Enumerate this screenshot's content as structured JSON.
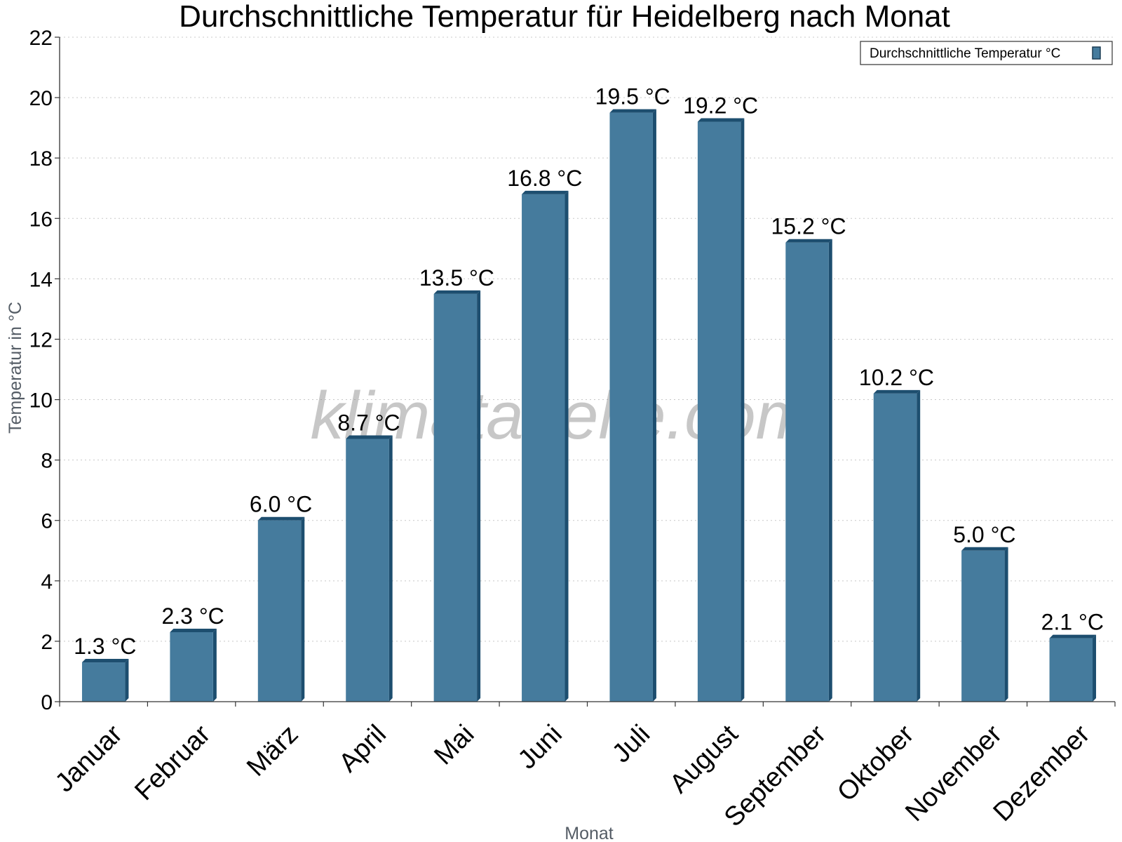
{
  "watermark": "klimatabelle.com",
  "chart_data": {
    "type": "bar",
    "title": "Durchschnittliche Temperatur für Heidelberg nach Monat",
    "xlabel": "Monat",
    "ylabel": "Temperatur in °C",
    "ylim": [
      0,
      22
    ],
    "yticks": [
      0,
      2,
      4,
      6,
      8,
      10,
      12,
      14,
      16,
      18,
      20,
      22
    ],
    "grid": true,
    "legend_position": "top-right",
    "unit_suffix": " °C",
    "categories": [
      "Januar",
      "Februar",
      "März",
      "April",
      "Mai",
      "Juni",
      "Juli",
      "August",
      "September",
      "Oktober",
      "November",
      "Dezember"
    ],
    "series": [
      {
        "name": "Durchschnittliche Temperatur °C",
        "color": "#457b9d",
        "side_color": "#1d4e6f",
        "values": [
          1.3,
          2.3,
          6.0,
          8.7,
          13.5,
          16.8,
          19.5,
          19.2,
          15.2,
          10.2,
          5.0,
          2.1
        ]
      }
    ]
  }
}
